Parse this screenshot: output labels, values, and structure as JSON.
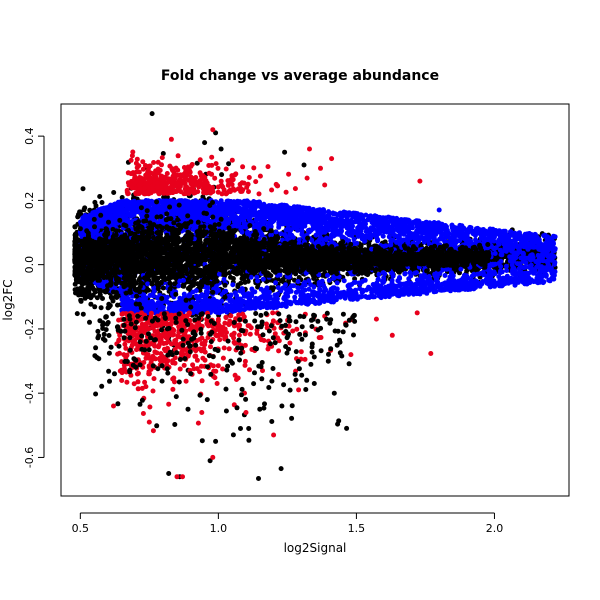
{
  "chart_data": {
    "type": "scatter",
    "title": "Fold change vs average abundance",
    "xlabel": "log2Signal",
    "ylabel": "log2FC",
    "xlim": [
      0.43,
      2.27
    ],
    "ylim": [
      -0.72,
      0.5
    ],
    "x_ticks": [
      0.5,
      1.0,
      1.5,
      2.0
    ],
    "x_tick_labels": [
      "0.5",
      "1.0",
      "1.5",
      "2.0"
    ],
    "y_ticks": [
      -0.6,
      -0.4,
      -0.2,
      0.0,
      0.2,
      0.4
    ],
    "y_tick_labels": [
      "-0.6",
      "-0.4",
      "-0.2",
      "0.0",
      "0.2",
      "0.4"
    ],
    "grid": false,
    "legend": "none",
    "series_colors": {
      "black": "#000000",
      "blue": "#0000ff",
      "red": "#e8001c"
    },
    "highlighted_points": {
      "black": [
        [
          0.76,
          0.47
        ],
        [
          0.99,
          0.41
        ],
        [
          0.95,
          0.38
        ],
        [
          1.01,
          0.36
        ],
        [
          1.24,
          0.35
        ],
        [
          1.31,
          0.31
        ],
        [
          0.82,
          -0.65
        ],
        [
          0.86,
          -0.66
        ],
        [
          0.97,
          -0.61
        ],
        [
          0.99,
          -0.55
        ],
        [
          1.08,
          -0.51
        ],
        [
          1.11,
          -0.51
        ],
        [
          1.23,
          -0.44
        ],
        [
          1.42,
          -0.4
        ],
        [
          1.32,
          -0.36
        ],
        [
          1.15,
          -0.45
        ],
        [
          0.96,
          -0.42
        ],
        [
          0.89,
          -0.45
        ]
      ],
      "red": [
        [
          0.83,
          0.39
        ],
        [
          0.98,
          0.42
        ],
        [
          1.33,
          0.36
        ],
        [
          1.41,
          0.33
        ],
        [
          1.73,
          0.26
        ],
        [
          1.37,
          0.3
        ],
        [
          0.85,
          -0.66
        ],
        [
          0.87,
          -0.66
        ],
        [
          0.98,
          -0.6
        ],
        [
          1.2,
          -0.53
        ],
        [
          0.75,
          -0.49
        ],
        [
          0.62,
          -0.44
        ],
        [
          0.94,
          -0.46
        ],
        [
          1.1,
          -0.46
        ],
        [
          1.48,
          -0.28
        ],
        [
          1.72,
          -0.15
        ],
        [
          1.63,
          -0.22
        ]
      ],
      "blue": [
        [
          2.22,
          0.05
        ],
        [
          2.19,
          0.06
        ],
        [
          2.15,
          0.055
        ],
        [
          2.1,
          0.07
        ],
        [
          2.05,
          0.08
        ],
        [
          1.8,
          0.17
        ]
      ]
    }
  }
}
